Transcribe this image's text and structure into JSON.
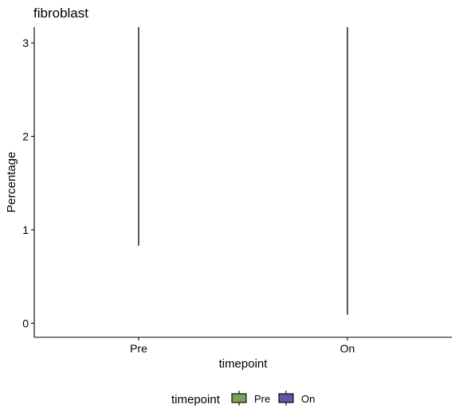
{
  "chart_data": {
    "type": "boxplot",
    "title": "fibroblast",
    "xlabel": "timepoint",
    "ylabel": "Percentage",
    "categories": [
      "Pre",
      "On"
    ],
    "ylim": [
      -0.15,
      3.17
    ],
    "yticks": [
      0,
      1,
      2,
      3
    ],
    "series": [
      {
        "category": "Pre",
        "low": 0.83,
        "high": 3.17,
        "color": "#7BA05B"
      },
      {
        "category": "On",
        "low": 0.09,
        "high": 3.17,
        "color": "#5A5A9E"
      }
    ],
    "legend": {
      "title": "timepoint",
      "position": "bottom",
      "items": [
        {
          "label": "Pre",
          "color": "#7BA05B"
        },
        {
          "label": "On",
          "color": "#5A5A9E"
        }
      ]
    },
    "grid": false
  }
}
